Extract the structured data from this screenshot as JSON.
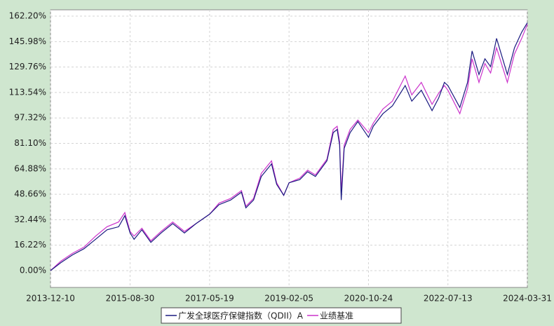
{
  "chart_data": {
    "type": "line",
    "x": [
      "2013-12-10",
      "2014-03-01",
      "2014-06-01",
      "2014-09-01",
      "2014-12-01",
      "2015-03-01",
      "2015-06-01",
      "2015-07-20",
      "2015-08-30",
      "2015-10-01",
      "2015-12-01",
      "2016-02-10",
      "2016-05-01",
      "2016-08-01",
      "2016-11-01",
      "2017-02-01",
      "2017-05-19",
      "2017-08-01",
      "2017-11-01",
      "2018-01-25",
      "2018-03-01",
      "2018-05-01",
      "2018-07-01",
      "2018-09-20",
      "2018-10-30",
      "2018-12-25",
      "2019-02-05",
      "2019-05-01",
      "2019-07-01",
      "2019-09-01",
      "2019-12-01",
      "2020-01-20",
      "2020-02-20",
      "2020-03-10",
      "2020-03-23",
      "2020-04-15",
      "2020-06-01",
      "2020-08-01",
      "2020-10-24",
      "2020-12-01",
      "2021-02-15",
      "2021-05-01",
      "2021-08-10",
      "2021-10-01",
      "2021-12-15",
      "2022-03-10",
      "2022-05-01",
      "2022-06-15",
      "2022-07-13",
      "2022-10-15",
      "2022-12-15",
      "2023-01-20",
      "2023-03-15",
      "2023-05-01",
      "2023-06-15",
      "2023-08-01",
      "2023-10-25",
      "2023-12-20",
      "2024-02-15",
      "2024-03-31"
    ],
    "series": [
      {
        "name": "广发全球医疗保健指数（QDII）A",
        "color": "#1a1a80",
        "values": [
          0,
          5,
          10,
          14,
          20,
          26,
          28,
          35,
          24,
          20,
          26,
          18,
          24,
          30,
          24,
          30,
          36,
          42,
          45,
          50,
          40,
          45,
          60,
          68,
          55,
          48,
          56,
          58,
          63,
          60,
          70,
          88,
          90,
          80,
          45,
          78,
          88,
          95,
          85,
          92,
          100,
          105,
          118,
          108,
          115,
          102,
          110,
          120,
          118,
          104,
          120,
          140,
          125,
          135,
          130,
          148,
          125,
          142,
          152,
          158
        ]
      },
      {
        "name": "业绩基准",
        "color": "#cc33cc",
        "values": [
          0,
          6,
          11,
          15,
          22,
          28,
          31,
          37,
          25,
          22,
          27,
          19,
          25,
          31,
          25,
          30,
          36,
          43,
          46,
          51,
          41,
          46,
          62,
          70,
          56,
          48,
          56,
          59,
          64,
          61,
          71,
          90,
          92,
          82,
          50,
          80,
          90,
          96,
          88,
          94,
          103,
          108,
          124,
          112,
          120,
          106,
          113,
          118,
          115,
          100,
          116,
          135,
          120,
          132,
          126,
          142,
          120,
          138,
          148,
          157
        ]
      }
    ],
    "xlim": [
      "2013-12-10",
      "2024-03-31"
    ],
    "xticks": [
      "2013-12-10",
      "2015-08-30",
      "2017-05-19",
      "2019-02-05",
      "2020-10-24",
      "2022-07-13",
      "2024-03-31"
    ],
    "ylim": [
      -10.72,
      166.24
    ],
    "yticks": [
      {
        "value": 0,
        "label": "0.00%"
      },
      {
        "value": 16.22,
        "label": "16.22%"
      },
      {
        "value": 32.44,
        "label": "32.44%"
      },
      {
        "value": 48.66,
        "label": "48.66%"
      },
      {
        "value": 64.88,
        "label": "64.88%"
      },
      {
        "value": 81.1,
        "label": "81.10%"
      },
      {
        "value": 97.32,
        "label": "97.32%"
      },
      {
        "value": 113.54,
        "label": "113.54%"
      },
      {
        "value": 129.76,
        "label": "129.76%"
      },
      {
        "value": 145.98,
        "label": "145.98%"
      },
      {
        "value": 162.2,
        "label": "162.20%"
      }
    ],
    "grid": true
  }
}
